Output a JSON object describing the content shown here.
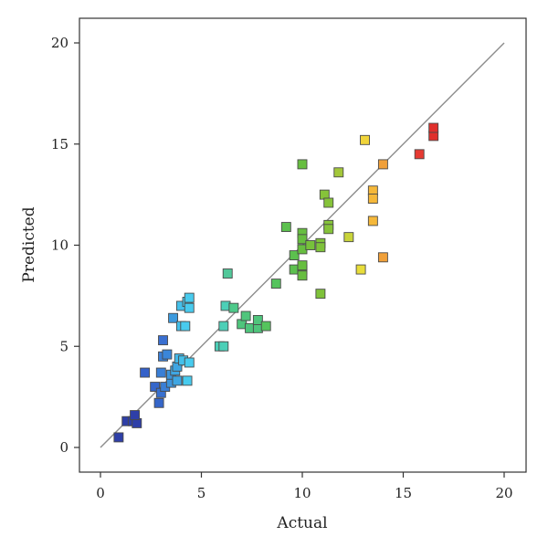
{
  "chart_data": {
    "type": "scatter",
    "title": "",
    "xlabel": "Actual",
    "ylabel": "Predicted",
    "xlim": [
      0,
      20
    ],
    "ylim": [
      0,
      20
    ],
    "x_ticks": [
      "0",
      "5",
      "10",
      "15",
      "20"
    ],
    "y_ticks": [
      "0",
      "5",
      "10",
      "15",
      "20"
    ],
    "grid": false,
    "reference_line": {
      "x": [
        0,
        20
      ],
      "y": [
        0,
        20
      ],
      "color": "#8c8c8c"
    },
    "color_scale": "value-based rainbow (blue → cyan → green → yellow → red)",
    "points": [
      {
        "x": 0.9,
        "y": 0.5,
        "color": "#2e3fa8"
      },
      {
        "x": 1.3,
        "y": 1.3,
        "color": "#2e3fa8"
      },
      {
        "x": 1.6,
        "y": 1.3,
        "color": "#2e3fa8"
      },
      {
        "x": 1.8,
        "y": 1.2,
        "color": "#2e3fa8"
      },
      {
        "x": 1.7,
        "y": 1.6,
        "color": "#2e3fa8"
      },
      {
        "x": 2.2,
        "y": 3.7,
        "color": "#3460c8"
      },
      {
        "x": 2.7,
        "y": 3.0,
        "color": "#3566c9"
      },
      {
        "x": 2.9,
        "y": 2.2,
        "color": "#3566c9"
      },
      {
        "x": 3.0,
        "y": 2.7,
        "color": "#3870cf"
      },
      {
        "x": 3.1,
        "y": 5.3,
        "color": "#3a6fd0"
      },
      {
        "x": 3.0,
        "y": 3.7,
        "color": "#3a7fd6"
      },
      {
        "x": 3.2,
        "y": 3.0,
        "color": "#3a7fd6"
      },
      {
        "x": 3.1,
        "y": 4.5,
        "color": "#3a7fd6"
      },
      {
        "x": 3.3,
        "y": 4.6,
        "color": "#3a86d9"
      },
      {
        "x": 3.5,
        "y": 3.2,
        "color": "#3c94dc"
      },
      {
        "x": 3.5,
        "y": 3.6,
        "color": "#3c94dc"
      },
      {
        "x": 3.6,
        "y": 6.4,
        "color": "#3c9ade"
      },
      {
        "x": 3.7,
        "y": 3.8,
        "color": "#3fa6e2"
      },
      {
        "x": 3.8,
        "y": 3.3,
        "color": "#3fa6e2"
      },
      {
        "x": 3.8,
        "y": 4.0,
        "color": "#3fa6e2"
      },
      {
        "x": 3.9,
        "y": 4.4,
        "color": "#44b8e8"
      },
      {
        "x": 4.0,
        "y": 6.0,
        "color": "#44c0ea"
      },
      {
        "x": 4.0,
        "y": 7.0,
        "color": "#44c0ea"
      },
      {
        "x": 4.1,
        "y": 4.3,
        "color": "#44c0ea"
      },
      {
        "x": 4.2,
        "y": 6.0,
        "color": "#48cbee"
      },
      {
        "x": 4.3,
        "y": 3.3,
        "color": "#48cbee"
      },
      {
        "x": 4.3,
        "y": 7.2,
        "color": "#48cbee"
      },
      {
        "x": 4.4,
        "y": 7.4,
        "color": "#48cbee"
      },
      {
        "x": 4.4,
        "y": 6.9,
        "color": "#48cbee"
      },
      {
        "x": 4.4,
        "y": 4.2,
        "color": "#48cbee"
      },
      {
        "x": 5.9,
        "y": 5.0,
        "color": "#4ccfb7"
      },
      {
        "x": 6.1,
        "y": 5.0,
        "color": "#4ccfb7"
      },
      {
        "x": 6.1,
        "y": 6.0,
        "color": "#4ccfb7"
      },
      {
        "x": 6.2,
        "y": 7.0,
        "color": "#4ccfb7"
      },
      {
        "x": 6.3,
        "y": 8.6,
        "color": "#52c89a"
      },
      {
        "x": 6.6,
        "y": 6.9,
        "color": "#4ec98a"
      },
      {
        "x": 7.0,
        "y": 6.1,
        "color": "#4fc57c"
      },
      {
        "x": 7.2,
        "y": 6.5,
        "color": "#4fc57c"
      },
      {
        "x": 7.4,
        "y": 5.9,
        "color": "#4fc57c"
      },
      {
        "x": 7.8,
        "y": 5.9,
        "color": "#4fc57c"
      },
      {
        "x": 7.8,
        "y": 6.3,
        "color": "#4fc57c"
      },
      {
        "x": 8.2,
        "y": 6.0,
        "color": "#55c45d"
      },
      {
        "x": 8.7,
        "y": 8.1,
        "color": "#55c45d"
      },
      {
        "x": 9.2,
        "y": 10.9,
        "color": "#5cc04e"
      },
      {
        "x": 9.6,
        "y": 9.5,
        "color": "#5cc04e"
      },
      {
        "x": 9.6,
        "y": 8.8,
        "color": "#5cc04e"
      },
      {
        "x": 10.0,
        "y": 10.6,
        "color": "#67be40"
      },
      {
        "x": 10.0,
        "y": 10.3,
        "color": "#67be40"
      },
      {
        "x": 10.0,
        "y": 9.8,
        "color": "#67be40"
      },
      {
        "x": 10.0,
        "y": 8.8,
        "color": "#67be40"
      },
      {
        "x": 10.0,
        "y": 8.5,
        "color": "#67be40"
      },
      {
        "x": 10.0,
        "y": 9.0,
        "color": "#67be40"
      },
      {
        "x": 10.0,
        "y": 14.0,
        "color": "#67be40"
      },
      {
        "x": 10.4,
        "y": 10.0,
        "color": "#77c13b"
      },
      {
        "x": 10.9,
        "y": 10.1,
        "color": "#7fc23a"
      },
      {
        "x": 10.9,
        "y": 9.9,
        "color": "#7fc23a"
      },
      {
        "x": 10.9,
        "y": 7.6,
        "color": "#7fc23a"
      },
      {
        "x": 11.1,
        "y": 12.5,
        "color": "#86c33a"
      },
      {
        "x": 11.3,
        "y": 12.1,
        "color": "#86c33a"
      },
      {
        "x": 11.3,
        "y": 11.0,
        "color": "#86c33a"
      },
      {
        "x": 11.3,
        "y": 10.8,
        "color": "#86c33a"
      },
      {
        "x": 11.8,
        "y": 13.6,
        "color": "#a3c73a"
      },
      {
        "x": 12.3,
        "y": 10.4,
        "color": "#c9d43a"
      },
      {
        "x": 12.9,
        "y": 8.8,
        "color": "#e8dd3a"
      },
      {
        "x": 13.1,
        "y": 15.2,
        "color": "#f0d43a"
      },
      {
        "x": 13.5,
        "y": 12.7,
        "color": "#f5b83a"
      },
      {
        "x": 13.5,
        "y": 12.3,
        "color": "#f5b83a"
      },
      {
        "x": 13.5,
        "y": 11.2,
        "color": "#f5b83a"
      },
      {
        "x": 14.0,
        "y": 14.0,
        "color": "#f0a03a"
      },
      {
        "x": 14.0,
        "y": 9.4,
        "color": "#f0a03a"
      },
      {
        "x": 15.8,
        "y": 14.5,
        "color": "#e63a32"
      },
      {
        "x": 16.5,
        "y": 15.4,
        "color": "#e0302c"
      },
      {
        "x": 16.5,
        "y": 15.8,
        "color": "#e0302c"
      }
    ]
  }
}
